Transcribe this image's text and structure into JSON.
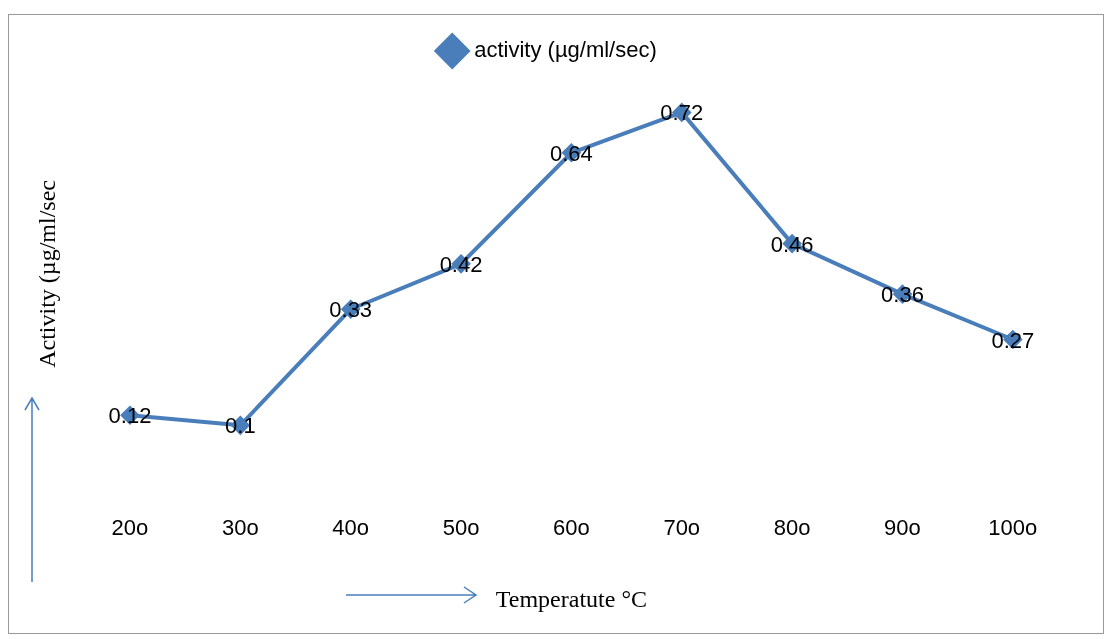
{
  "chart_data": {
    "type": "line",
    "categories": [
      "20o",
      "30o",
      "40o",
      "50o",
      "60o",
      "70o",
      "80o",
      "90o",
      "100o"
    ],
    "series": [
      {
        "name": "activity (µg/ml/sec)",
        "color": "#4a7ebb",
        "values": [
          0.12,
          0.1,
          0.33,
          0.42,
          0.64,
          0.72,
          0.46,
          0.36,
          0.27
        ]
      }
    ],
    "xlabel": "Temperatute °C",
    "ylabel": "Activity (µg/ml/sec",
    "data_labels": true,
    "legend": "top",
    "marker": "diamond",
    "line_style": "solid",
    "grid": false,
    "tick_labels": "x"
  }
}
